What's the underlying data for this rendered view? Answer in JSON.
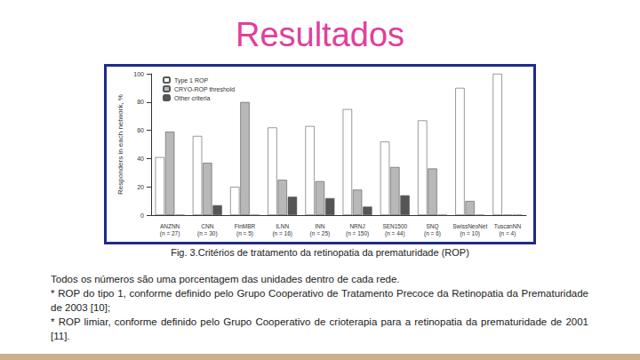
{
  "slide_title": "Resultados",
  "caption": "Fig. 3.Critérios de tratamento da retinopatia da prematuridade (ROP)",
  "notes": [
    "Todos os números são uma porcentagem das unidades dentro de cada rede.",
    "* ROP do tipo 1, conforme definido pelo Grupo Cooperativo de Tratamento Precoce da Retinopatia da Prematuridade de 2003 [10];",
    "* ROP limiar, conforme definido pelo Grupo Cooperativo de crioterapia para a retinopatia da prematuridade de 2001 [11]."
  ],
  "chart_data": {
    "type": "bar",
    "y_label": "Responders in each network, %",
    "categories": [
      "ANZNN\n(n = 27)",
      "CNN\n(n = 30)",
      "FinMBR\n(n = 5)",
      "ILNN\n(n = 16)",
      "INN\n(n = 25)",
      "NRNJ\n(n = 150)",
      "SEN1500\n(n = 44)",
      "SNQ\n(n = 6)",
      "SwissNeoNet\n(n = 10)",
      "TuscanNN\n(n = 4)"
    ],
    "series": [
      {
        "name": "Type 1 ROP",
        "color": "#ffffff",
        "values": [
          41,
          56,
          20,
          62,
          63,
          75,
          52,
          67,
          90,
          100
        ]
      },
      {
        "name": "CRYO-ROP threshold",
        "color": "#b8b8b8",
        "values": [
          59,
          37,
          80,
          25,
          24,
          18,
          34,
          33,
          10,
          0
        ]
      },
      {
        "name": "Other criteria",
        "color": "#555555",
        "values": [
          0,
          7,
          0,
          13,
          12,
          6,
          14,
          0,
          0,
          0
        ]
      }
    ],
    "ylim": [
      0,
      100
    ],
    "yticks": [
      0,
      20,
      40,
      60,
      80,
      100
    ],
    "grid": false,
    "legend": "upper left",
    "data_labels": false
  }
}
